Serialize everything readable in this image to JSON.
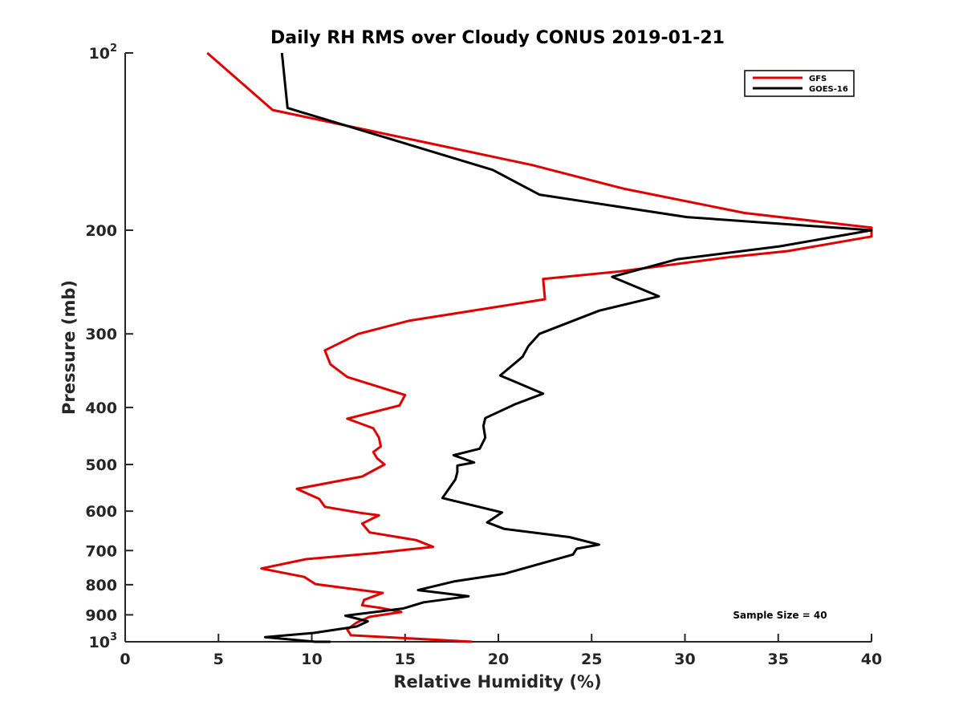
{
  "chart_data": {
    "type": "line",
    "title": "Daily RH RMS over Cloudy CONUS 2019-01-21",
    "xlabel": "Relative Humidity (%)",
    "ylabel": "Pressure (mb)",
    "xlim": [
      0,
      40
    ],
    "ylim": [
      100,
      1000
    ],
    "y_scale": "log",
    "y_reversed": true,
    "grid": false,
    "legend_position": "top-right",
    "x_ticks": [
      {
        "value": 0,
        "label": "0"
      },
      {
        "value": 5,
        "label": "5"
      },
      {
        "value": 10,
        "label": "10"
      },
      {
        "value": 15,
        "label": "15"
      },
      {
        "value": 20,
        "label": "20"
      },
      {
        "value": 25,
        "label": "25"
      },
      {
        "value": 30,
        "label": "30"
      },
      {
        "value": 35,
        "label": "35"
      },
      {
        "value": 40,
        "label": "40"
      }
    ],
    "y_ticks": [
      {
        "value": 100,
        "base": "10",
        "exp": "2"
      },
      {
        "value": 200,
        "label": "200"
      },
      {
        "value": 300,
        "label": "300"
      },
      {
        "value": 400,
        "label": "400"
      },
      {
        "value": 500,
        "label": "500"
      },
      {
        "value": 600,
        "label": "600"
      },
      {
        "value": 700,
        "label": "700"
      },
      {
        "value": 800,
        "label": "800"
      },
      {
        "value": 900,
        "label": "900"
      },
      {
        "value": 1000,
        "base": "10",
        "exp": "3"
      }
    ],
    "series": [
      {
        "name": "GFS",
        "color": "#e00000",
        "points": [
          [
            4.4,
            100
          ],
          [
            7.9,
            125
          ],
          [
            21.8,
            155
          ],
          [
            26.7,
            170
          ],
          [
            33.2,
            187
          ],
          [
            40,
            198
          ],
          [
            40,
            205
          ],
          [
            35.5,
            217
          ],
          [
            32.5,
            222
          ],
          [
            26.5,
            235
          ],
          [
            22.4,
            242
          ],
          [
            22.5,
            262
          ],
          [
            15.2,
            285
          ],
          [
            12.5,
            300
          ],
          [
            10.7,
            320
          ],
          [
            11.0,
            338
          ],
          [
            11.9,
            355
          ],
          [
            15.0,
            381
          ],
          [
            14.7,
            397
          ],
          [
            11.9,
            418
          ],
          [
            13.3,
            434
          ],
          [
            13.6,
            450
          ],
          [
            13.7,
            466
          ],
          [
            13.3,
            476
          ],
          [
            13.5,
            488
          ],
          [
            13.9,
            500
          ],
          [
            12.7,
            524
          ],
          [
            9.2,
            550
          ],
          [
            10.4,
            572
          ],
          [
            10.7,
            590
          ],
          [
            12.6,
            604
          ],
          [
            13.6,
            610
          ],
          [
            12.7,
            630
          ],
          [
            13.1,
            652
          ],
          [
            15.6,
            672
          ],
          [
            16.5,
            690
          ],
          [
            13.4,
            707
          ],
          [
            9.7,
            724
          ],
          [
            7.3,
            751
          ],
          [
            9.6,
            776
          ],
          [
            10.2,
            798
          ],
          [
            13.8,
            826
          ],
          [
            12.8,
            849
          ],
          [
            12.7,
            867
          ],
          [
            13.7,
            876
          ],
          [
            14.8,
            890
          ],
          [
            13.1,
            907
          ],
          [
            12.4,
            928
          ],
          [
            11.9,
            953
          ],
          [
            12.1,
            975
          ],
          [
            18.6,
            1000
          ]
        ]
      },
      {
        "name": "GOES-16",
        "color": "#000000",
        "points": [
          [
            8.4,
            100
          ],
          [
            8.7,
            124
          ],
          [
            19.7,
            158
          ],
          [
            22.2,
            174
          ],
          [
            30.1,
            190
          ],
          [
            40.0,
            200
          ],
          [
            35.1,
            213
          ],
          [
            29.6,
            224
          ],
          [
            26.1,
            240
          ],
          [
            28.6,
            259
          ],
          [
            25.4,
            274
          ],
          [
            22.2,
            300
          ],
          [
            21.6,
            315
          ],
          [
            21.3,
            328
          ],
          [
            20.1,
            353
          ],
          [
            22.4,
            379
          ],
          [
            20.9,
            395
          ],
          [
            19.3,
            417
          ],
          [
            19.2,
            430
          ],
          [
            19.3,
            450
          ],
          [
            19.0,
            470
          ],
          [
            17.6,
            482
          ],
          [
            18.7,
            496
          ],
          [
            17.8,
            502
          ],
          [
            17.8,
            515
          ],
          [
            17.7,
            530
          ],
          [
            17.0,
            570
          ],
          [
            20.2,
            603
          ],
          [
            19.4,
            627
          ],
          [
            20.3,
            643
          ],
          [
            23.8,
            664
          ],
          [
            25.4,
            684
          ],
          [
            24.2,
            695
          ],
          [
            24.0,
            711
          ],
          [
            20.3,
            767
          ],
          [
            17.6,
            790
          ],
          [
            15.7,
            817
          ],
          [
            18.4,
            837
          ],
          [
            16.0,
            857
          ],
          [
            14.9,
            878
          ],
          [
            11.8,
            903
          ],
          [
            13.0,
            923
          ],
          [
            12.4,
            942
          ],
          [
            10.1,
            966
          ],
          [
            7.5,
            982
          ],
          [
            10.2,
            1000
          ],
          [
            11.0,
            1000
          ]
        ]
      }
    ],
    "annotation": "Sample Size = 40"
  }
}
